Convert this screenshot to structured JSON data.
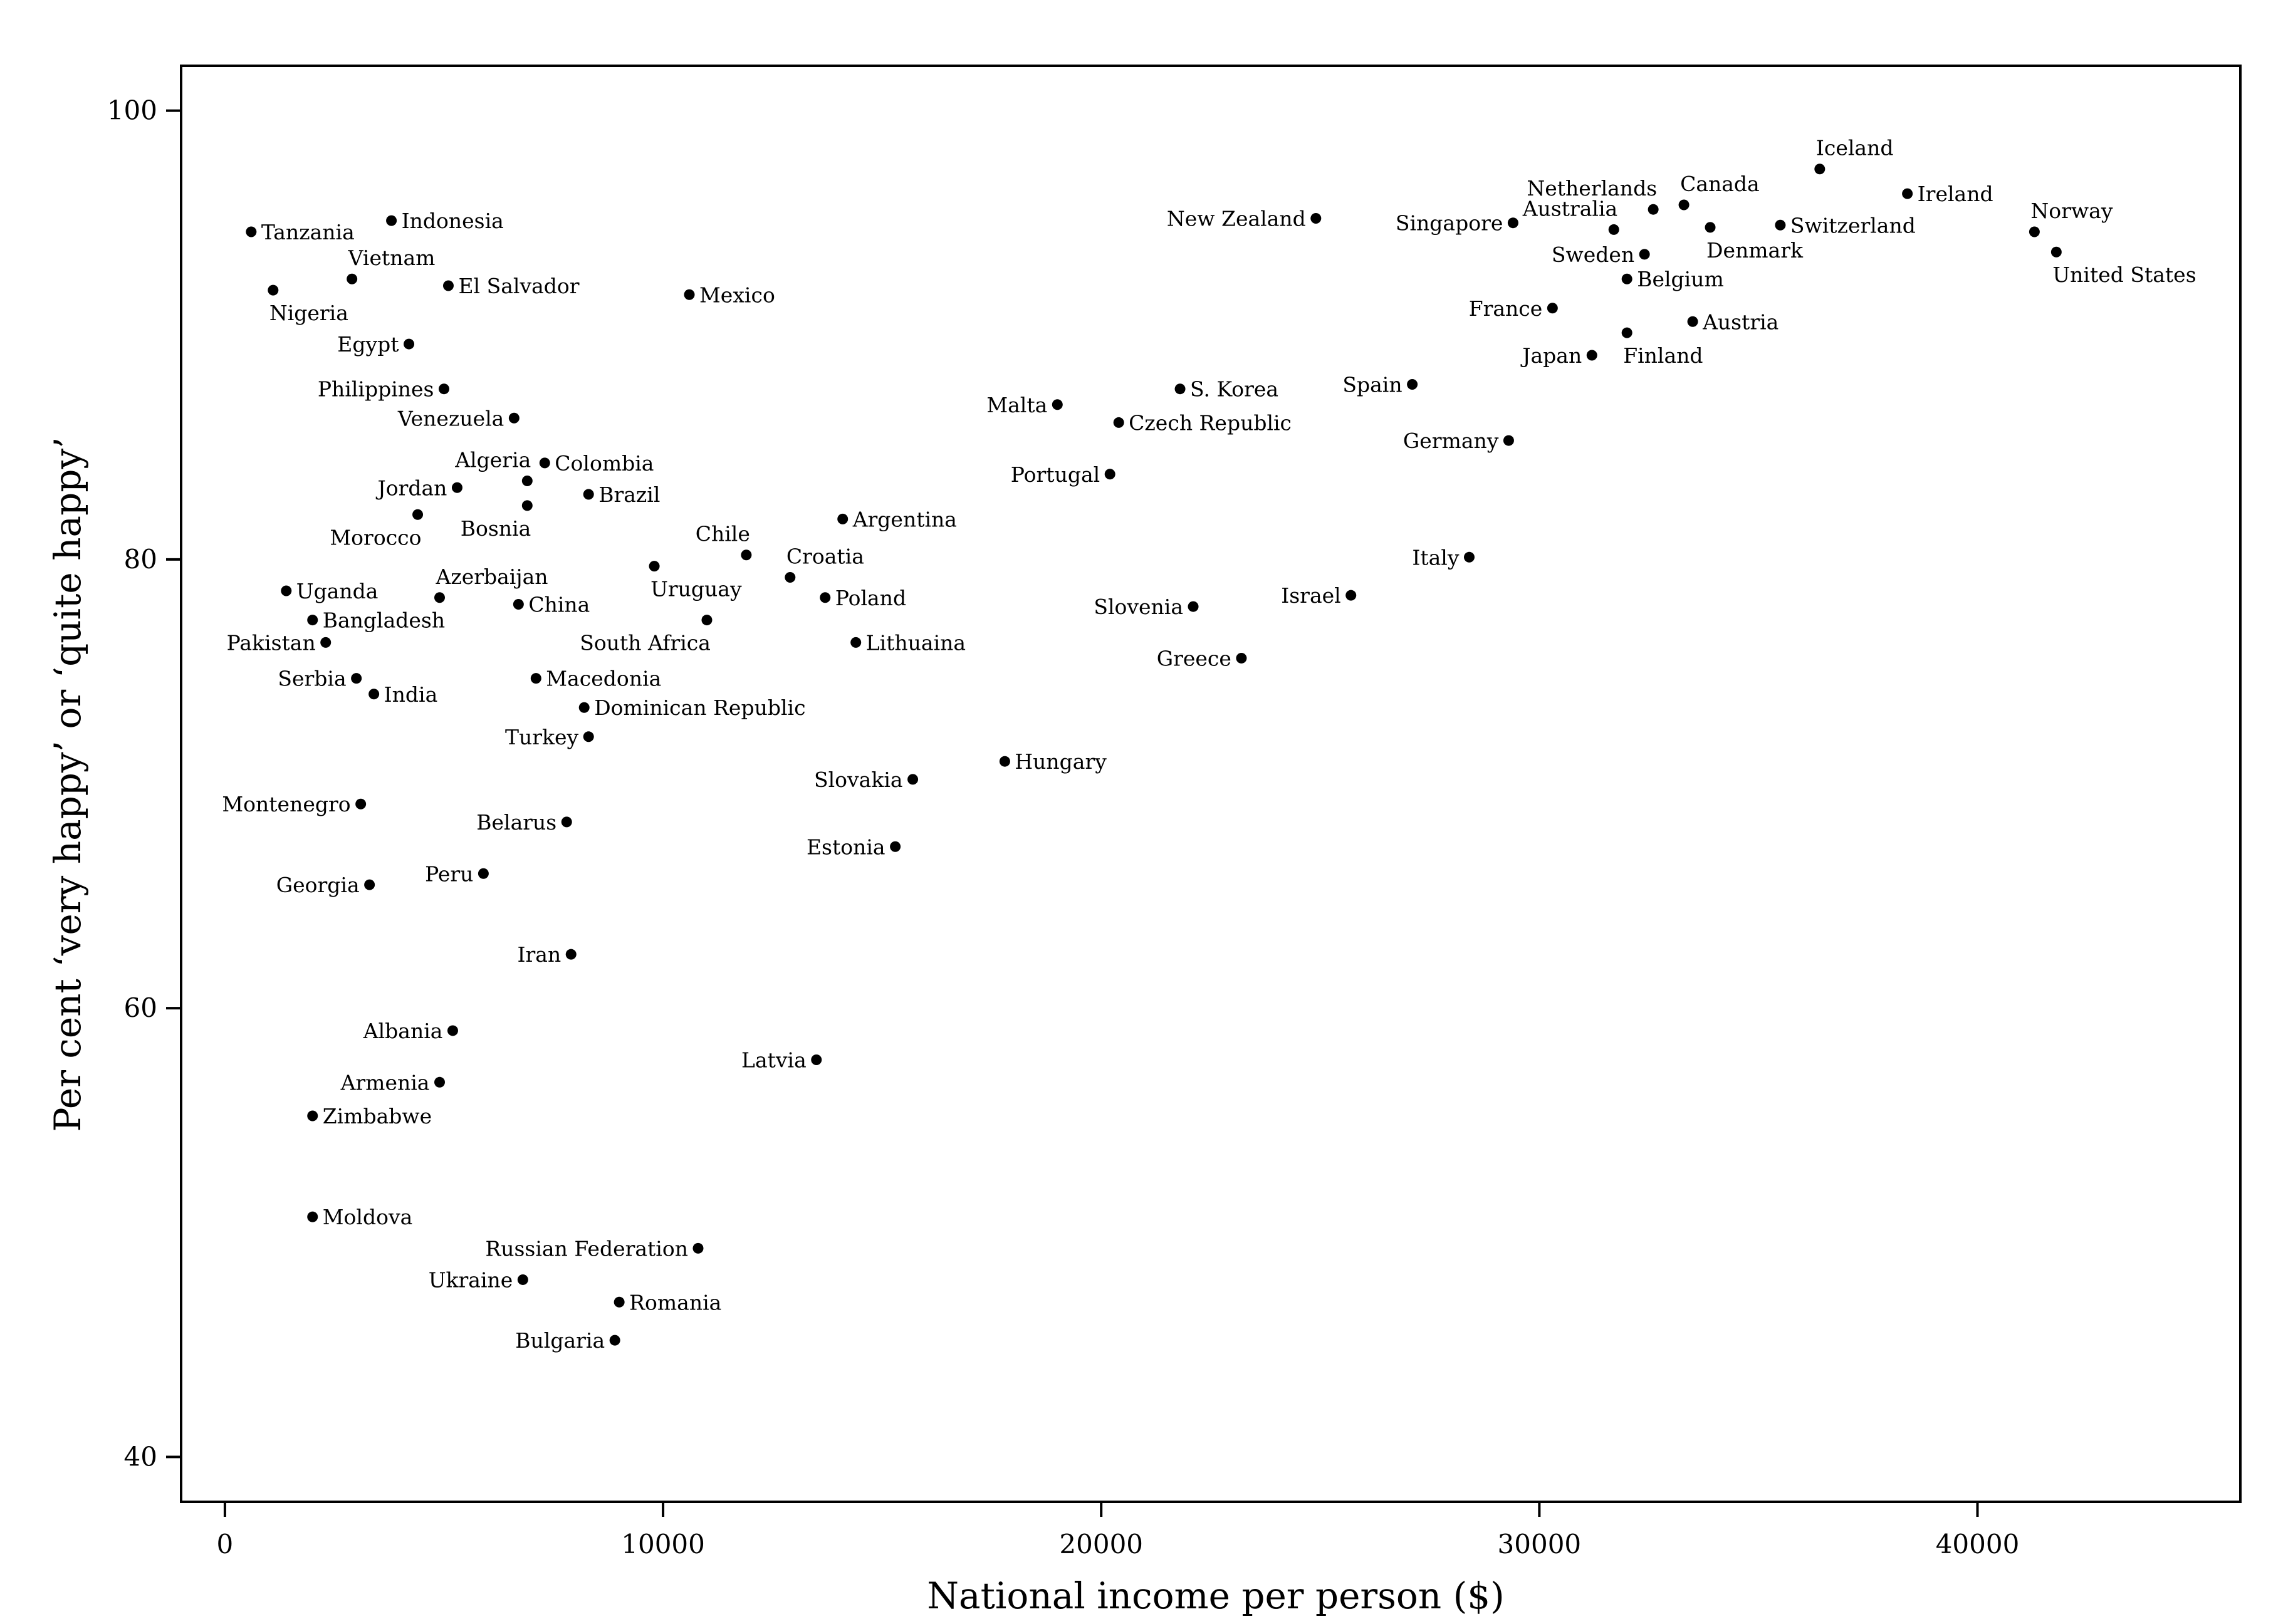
{
  "chart_data": {
    "type": "scatter",
    "title": "",
    "xlabel": "National income per person ($)",
    "ylabel": "Per cent ‘very happy’ or ‘quite happy’",
    "xlim": [
      -1000,
      46000
    ],
    "ylim": [
      38,
      102
    ],
    "xticks": [
      0,
      10000,
      20000,
      30000,
      40000
    ],
    "yticks": [
      40,
      60,
      80,
      100
    ],
    "grid": false,
    "legend": "none",
    "point_color": "#000000",
    "points": [
      {
        "label": "Tanzania",
        "x": 600,
        "y": 94.6,
        "pos": "r"
      },
      {
        "label": "Indonesia",
        "x": 3800,
        "y": 95.1,
        "pos": "r"
      },
      {
        "label": "Vietnam",
        "x": 2900,
        "y": 92.5,
        "pos": "ar"
      },
      {
        "label": "El Salvador",
        "x": 5100,
        "y": 92.2,
        "pos": "r"
      },
      {
        "label": "Nigeria",
        "x": 1100,
        "y": 92.0,
        "pos": "br"
      },
      {
        "label": "Mexico",
        "x": 10600,
        "y": 91.8,
        "pos": "r"
      },
      {
        "label": "Egypt",
        "x": 4200,
        "y": 89.6,
        "pos": "l"
      },
      {
        "label": "Philippines",
        "x": 5000,
        "y": 87.6,
        "pos": "l"
      },
      {
        "label": "Venezuela",
        "x": 6600,
        "y": 86.3,
        "pos": "l"
      },
      {
        "label": "Algeria",
        "x": 6900,
        "y": 83.5,
        "pos": "al"
      },
      {
        "label": "Colombia",
        "x": 7300,
        "y": 84.3,
        "pos": "r"
      },
      {
        "label": "Jordan",
        "x": 5300,
        "y": 83.2,
        "pos": "l"
      },
      {
        "label": "Brazil",
        "x": 8300,
        "y": 82.9,
        "pos": "r"
      },
      {
        "label": "Bosnia",
        "x": 6900,
        "y": 82.4,
        "pos": "bl"
      },
      {
        "label": "Morocco",
        "x": 4400,
        "y": 82.0,
        "pos": "bl"
      },
      {
        "label": "Argentina",
        "x": 14100,
        "y": 81.8,
        "pos": "r"
      },
      {
        "label": "Chile",
        "x": 11900,
        "y": 80.2,
        "pos": "al"
      },
      {
        "label": "Uruguay",
        "x": 9800,
        "y": 79.7,
        "pos": "br"
      },
      {
        "label": "Croatia",
        "x": 12900,
        "y": 79.2,
        "pos": "ar"
      },
      {
        "label": "Uganda",
        "x": 1400,
        "y": 78.6,
        "pos": "r"
      },
      {
        "label": "Azerbaijan",
        "x": 4900,
        "y": 78.3,
        "pos": "ar"
      },
      {
        "label": "Poland",
        "x": 13700,
        "y": 78.3,
        "pos": "r"
      },
      {
        "label": "China",
        "x": 6700,
        "y": 78.0,
        "pos": "r"
      },
      {
        "label": "Bangladesh",
        "x": 2000,
        "y": 77.3,
        "pos": "r"
      },
      {
        "label": "South Africa",
        "x": 11000,
        "y": 77.3,
        "pos": "bl"
      },
      {
        "label": "Pakistan",
        "x": 2300,
        "y": 76.3,
        "pos": "l"
      },
      {
        "label": "Lithuaina",
        "x": 14400,
        "y": 76.3,
        "pos": "r"
      },
      {
        "label": "Serbia",
        "x": 3000,
        "y": 74.7,
        "pos": "l"
      },
      {
        "label": "Macedonia",
        "x": 7100,
        "y": 74.7,
        "pos": "r"
      },
      {
        "label": "India",
        "x": 3400,
        "y": 74.0,
        "pos": "r"
      },
      {
        "label": "Dominican Republic",
        "x": 8200,
        "y": 73.4,
        "pos": "r"
      },
      {
        "label": "Turkey",
        "x": 8300,
        "y": 72.1,
        "pos": "l"
      },
      {
        "label": "Hungary",
        "x": 17800,
        "y": 71.0,
        "pos": "r"
      },
      {
        "label": "Slovakia",
        "x": 15700,
        "y": 70.2,
        "pos": "l"
      },
      {
        "label": "Montenegro",
        "x": 3100,
        "y": 69.1,
        "pos": "l"
      },
      {
        "label": "Belarus",
        "x": 7800,
        "y": 68.3,
        "pos": "l"
      },
      {
        "label": "Estonia",
        "x": 15300,
        "y": 67.2,
        "pos": "l"
      },
      {
        "label": "Peru",
        "x": 5900,
        "y": 66.0,
        "pos": "l"
      },
      {
        "label": "Georgia",
        "x": 3300,
        "y": 65.5,
        "pos": "l"
      },
      {
        "label": "Iran",
        "x": 7900,
        "y": 62.4,
        "pos": "l"
      },
      {
        "label": "Albania",
        "x": 5200,
        "y": 59.0,
        "pos": "l"
      },
      {
        "label": "Latvia",
        "x": 13500,
        "y": 57.7,
        "pos": "l"
      },
      {
        "label": "Armenia",
        "x": 4900,
        "y": 56.7,
        "pos": "l"
      },
      {
        "label": "Zimbabwe",
        "x": 2000,
        "y": 55.2,
        "pos": "r"
      },
      {
        "label": "Moldova",
        "x": 2000,
        "y": 50.7,
        "pos": "r"
      },
      {
        "label": "Russian Federation",
        "x": 10800,
        "y": 49.3,
        "pos": "l"
      },
      {
        "label": "Ukraine",
        "x": 6800,
        "y": 47.9,
        "pos": "l"
      },
      {
        "label": "Romania",
        "x": 9000,
        "y": 46.9,
        "pos": "r"
      },
      {
        "label": "Bulgaria",
        "x": 8900,
        "y": 45.2,
        "pos": "l"
      },
      {
        "label": "Malta",
        "x": 19000,
        "y": 86.9,
        "pos": "l"
      },
      {
        "label": "S. Korea",
        "x": 21800,
        "y": 87.6,
        "pos": "r"
      },
      {
        "label": "Czech Republic",
        "x": 20400,
        "y": 86.1,
        "pos": "r"
      },
      {
        "label": "Portugal",
        "x": 20200,
        "y": 83.8,
        "pos": "l"
      },
      {
        "label": "Slovenia",
        "x": 22100,
        "y": 77.9,
        "pos": "l"
      },
      {
        "label": "Greece",
        "x": 23200,
        "y": 75.6,
        "pos": "l"
      },
      {
        "label": "Israel",
        "x": 25700,
        "y": 78.4,
        "pos": "l"
      },
      {
        "label": "New Zealand",
        "x": 24900,
        "y": 95.2,
        "pos": "l"
      },
      {
        "label": "Spain",
        "x": 27100,
        "y": 87.8,
        "pos": "l"
      },
      {
        "label": "Italy",
        "x": 28400,
        "y": 80.1,
        "pos": "l"
      },
      {
        "label": "Germany",
        "x": 29300,
        "y": 85.3,
        "pos": "l"
      },
      {
        "label": "Singapore",
        "x": 29400,
        "y": 95.0,
        "pos": "l"
      },
      {
        "label": "France",
        "x": 30300,
        "y": 91.2,
        "pos": "l"
      },
      {
        "label": "Japan",
        "x": 31200,
        "y": 89.1,
        "pos": "l"
      },
      {
        "label": "Australia",
        "x": 31700,
        "y": 94.7,
        "pos": "al"
      },
      {
        "label": "Sweden",
        "x": 32400,
        "y": 93.6,
        "pos": "l"
      },
      {
        "label": "Belgium",
        "x": 32000,
        "y": 92.5,
        "pos": "r"
      },
      {
        "label": "Finland",
        "x": 32000,
        "y": 90.1,
        "pos": "br"
      },
      {
        "label": "Netherlands",
        "x": 32600,
        "y": 95.6,
        "pos": "al"
      },
      {
        "label": "Canada",
        "x": 33300,
        "y": 95.8,
        "pos": "ar"
      },
      {
        "label": "Denmark",
        "x": 33900,
        "y": 94.8,
        "pos": "br"
      },
      {
        "label": "Austria",
        "x": 33500,
        "y": 90.6,
        "pos": "r"
      },
      {
        "label": "Switzerland",
        "x": 35500,
        "y": 94.9,
        "pos": "r"
      },
      {
        "label": "Iceland",
        "x": 36400,
        "y": 97.4,
        "pos": "ar"
      },
      {
        "label": "Ireland",
        "x": 38400,
        "y": 96.3,
        "pos": "r"
      },
      {
        "label": "Norway",
        "x": 41300,
        "y": 94.6,
        "pos": "ar"
      },
      {
        "label": "United States",
        "x": 41800,
        "y": 93.7,
        "pos": "br"
      }
    ]
  }
}
